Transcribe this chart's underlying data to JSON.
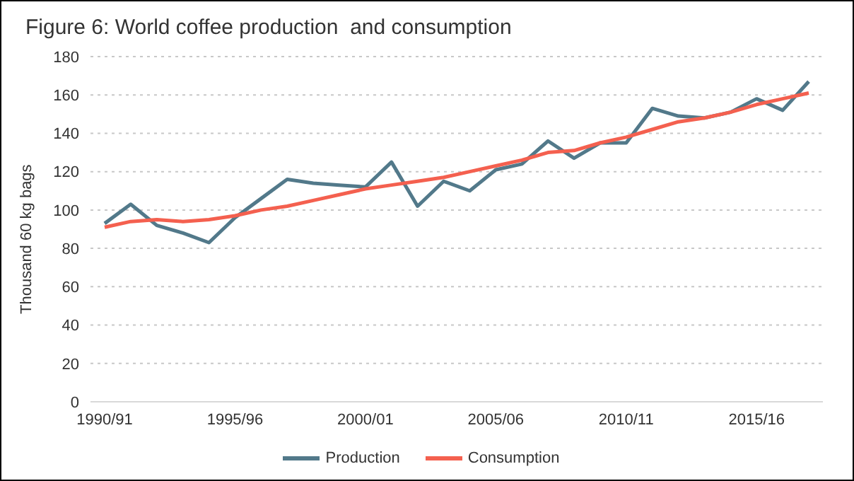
{
  "chart_data": {
    "type": "line",
    "title": "Figure 6: World coffee production  and consumption",
    "ylabel": "Thousand 60 kg bags",
    "categories": [
      "1990/91",
      null,
      null,
      null,
      null,
      "1995/96",
      null,
      null,
      null,
      null,
      "2000/01",
      null,
      null,
      null,
      null,
      "2005/06",
      null,
      null,
      null,
      null,
      "2010/11",
      null,
      null,
      null,
      null,
      "2015/16",
      null,
      null
    ],
    "series": [
      {
        "name": "Production",
        "color": "#52798a",
        "values": [
          93,
          103,
          92,
          88,
          83,
          96,
          106,
          116,
          114,
          113,
          112,
          125,
          102,
          115,
          110,
          121,
          124,
          136,
          127,
          135,
          135,
          153,
          149,
          148,
          151,
          158,
          152,
          167
        ]
      },
      {
        "name": "Consumption",
        "color": "#f4604f",
        "values": [
          91,
          94,
          95,
          94,
          95,
          97,
          100,
          102,
          105,
          108,
          111,
          113,
          115,
          117,
          120,
          123,
          126,
          130,
          131,
          135,
          138,
          142,
          146,
          148,
          151,
          155,
          158,
          161
        ]
      }
    ],
    "ylim": [
      0,
      180
    ],
    "yticks": [
      0,
      20,
      40,
      60,
      80,
      100,
      120,
      140,
      160,
      180
    ],
    "grid": "y",
    "legend": "bottom",
    "marker": "none",
    "line_style": "solid"
  }
}
